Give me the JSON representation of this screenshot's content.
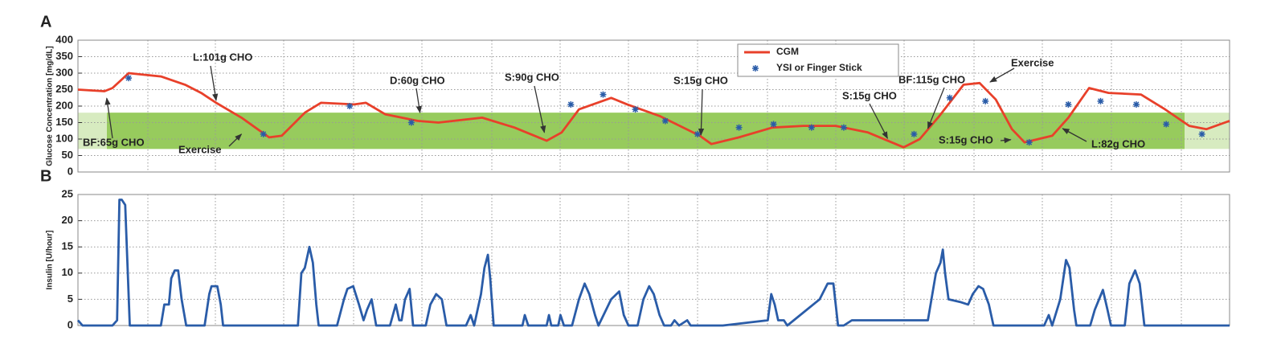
{
  "chart_data": [
    {
      "type": "line",
      "panel_label": "A",
      "y_label": "Glucose Concentration [mg/dL]",
      "ylim": [
        0,
        400
      ],
      "yticks": [
        0,
        50,
        100,
        150,
        200,
        250,
        300,
        350,
        400
      ],
      "xlim": [
        0,
        100
      ],
      "grid": true,
      "target_range": [
        70,
        180
      ],
      "target_color": "#8cc64b",
      "legend": "top",
      "series": [
        {
          "name": "CGM",
          "type": "line",
          "color": "#e8402a",
          "x": [
            0,
            2.3,
            3,
            4.4,
            7.2,
            9.3,
            10.7,
            12,
            14.2,
            15.6,
            16.6,
            17.7,
            19.7,
            21.1,
            24,
            25,
            26.7,
            29.5,
            31.3,
            35.1,
            37.9,
            40.7,
            42,
            43.5,
            46.3,
            47.7,
            50.5,
            54,
            55,
            57.4,
            60.3,
            63,
            65.8,
            68.6,
            71.7,
            73.1,
            74.8,
            76.9,
            78.3,
            79.7,
            81.1,
            82.2,
            84.6,
            86,
            87.8,
            89.5,
            92.3,
            94.4,
            96.5,
            98,
            100
          ],
          "values": [
            250,
            245,
            255,
            300,
            290,
            265,
            240,
            210,
            165,
            130,
            105,
            110,
            180,
            210,
            205,
            210,
            175,
            155,
            150,
            165,
            135,
            95,
            120,
            190,
            225,
            205,
            170,
            110,
            85,
            105,
            135,
            140,
            140,
            120,
            75,
            100,
            170,
            265,
            270,
            220,
            130,
            90,
            110,
            165,
            255,
            240,
            235,
            190,
            140,
            130,
            155
          ]
        },
        {
          "name": "YSI or Finger Stick",
          "type": "scatter",
          "color": "#2a5ca8",
          "x": [
            4.4,
            16.1,
            23.6,
            28.95,
            42.8,
            45.6,
            48.4,
            51,
            53.8,
            57.4,
            60.4,
            63.7,
            66.5,
            72.6,
            75.7,
            78.8,
            82.6,
            86,
            88.8,
            91.9,
            94.5,
            97.6
          ],
          "values": [
            285,
            115,
            200,
            150,
            205,
            235,
            190,
            155,
            115,
            135,
            145,
            135,
            135,
            115,
            225,
            215,
            90,
            205,
            215,
            205,
            145,
            115
          ]
        }
      ],
      "annotations": [
        {
          "text": "L:101g CHO",
          "x": 12,
          "y": 217
        },
        {
          "text": "BF:65g CHO",
          "x": 2.5,
          "y": 224
        },
        {
          "text": "Exercise",
          "x": 14.2,
          "y": 115
        },
        {
          "text": "D:60g CHO",
          "x": 29.7,
          "y": 180
        },
        {
          "text": "S:90g CHO",
          "x": 40.5,
          "y": 120
        },
        {
          "text": "S:15g CHO",
          "x": 54.1,
          "y": 112
        },
        {
          "text": "S:15g CHO",
          "x": 70.3,
          "y": 102
        },
        {
          "text": "BF:115g CHO",
          "x": 73.8,
          "y": 132
        },
        {
          "text": "Exercise",
          "x": 79.2,
          "y": 273
        },
        {
          "text": "S:15g CHO",
          "x": 81,
          "y": 98
        },
        {
          "text": "L:82g CHO",
          "x": 85.5,
          "y": 132
        }
      ]
    },
    {
      "type": "line",
      "panel_label": "B",
      "y_label": "Insulin [U/hour]",
      "ylim": [
        0,
        25
      ],
      "yticks": [
        0,
        5,
        10,
        15,
        20,
        25
      ],
      "xlim": [
        0,
        100
      ],
      "grid": true,
      "series": [
        {
          "type": "line",
          "color": "#2a5ca8",
          "x": [
            0,
            0.4,
            3.0,
            3.4,
            3.6,
            3.8,
            4.1,
            4.5,
            7.2,
            7.5,
            7.9,
            8.1,
            8.4,
            8.7,
            9.0,
            9.4,
            11.0,
            11.4,
            11.6,
            12.1,
            12.4,
            12.6,
            19.1,
            19.4,
            19.7,
            20.1,
            20.4,
            20.7,
            20.9,
            22.5,
            23.1,
            23.4,
            23.9,
            24.4,
            24.8,
            25.1,
            25.5,
            25.9,
            27.1,
            27.6,
            27.9,
            28.1,
            28.4,
            28.8,
            29.1,
            30.2,
            30.6,
            31.1,
            31.6,
            32.0,
            33.7,
            34.1,
            34.4,
            35.0,
            35.3,
            35.6,
            35.8,
            36.1,
            38.6,
            38.8,
            39.1,
            40.7,
            40.9,
            41.1,
            41.7,
            41.9,
            42.2,
            42.9,
            43.5,
            44.0,
            44.4,
            44.9,
            45.2,
            46.3,
            47.0,
            47.4,
            47.8,
            48.6,
            49.1,
            49.6,
            50.0,
            50.5,
            50.9,
            51.5,
            51.8,
            52.2,
            52.9,
            53.2,
            56.0,
            59.9,
            60.2,
            60.5,
            60.8,
            61.3,
            61.6,
            64.4,
            65.1,
            65.6,
            66.0,
            66.5,
            67.2,
            73.8,
            74.5,
            74.9,
            75.1,
            75.3,
            75.6,
            76.6,
            77.3,
            77.7,
            78.2,
            78.6,
            79.1,
            79.5,
            83.9,
            84.3,
            84.6,
            85.3,
            85.8,
            86.1,
            86.5,
            86.7,
            87.9,
            88.3,
            89.0,
            89.4,
            89.7,
            90.9,
            91.3,
            91.8,
            92.2,
            92.6,
            100
          ],
          "values": [
            1,
            0,
            0,
            1,
            24,
            24,
            23,
            0,
            0,
            4,
            4,
            9,
            10.5,
            10.5,
            5,
            0,
            0,
            6,
            7.5,
            7.5,
            4,
            0,
            0,
            10,
            11,
            15,
            12,
            4,
            0,
            0,
            5,
            7,
            7.5,
            4,
            1,
            3,
            5,
            0,
            0,
            4,
            1,
            1,
            5,
            7,
            0,
            0,
            4,
            6,
            5,
            0,
            0,
            2,
            0,
            6,
            11,
            13.5,
            9,
            0,
            0,
            2,
            0,
            0,
            2,
            0,
            0,
            2,
            0,
            0,
            5,
            8,
            6,
            2,
            0,
            5,
            6.5,
            2,
            0,
            0,
            5,
            7.5,
            6,
            2,
            0,
            0,
            1,
            0,
            1,
            0,
            0,
            1,
            6,
            4,
            1,
            1,
            0,
            5,
            8,
            8,
            0,
            0,
            1,
            1,
            10,
            12,
            14.5,
            10,
            5,
            4.5,
            4,
            6,
            7.5,
            7,
            4,
            0,
            0,
            2,
            0,
            5,
            12.5,
            11,
            3,
            0,
            0,
            3,
            6.8,
            3,
            0,
            0,
            8,
            10.5,
            8,
            0,
            0
          ]
        }
      ]
    }
  ]
}
